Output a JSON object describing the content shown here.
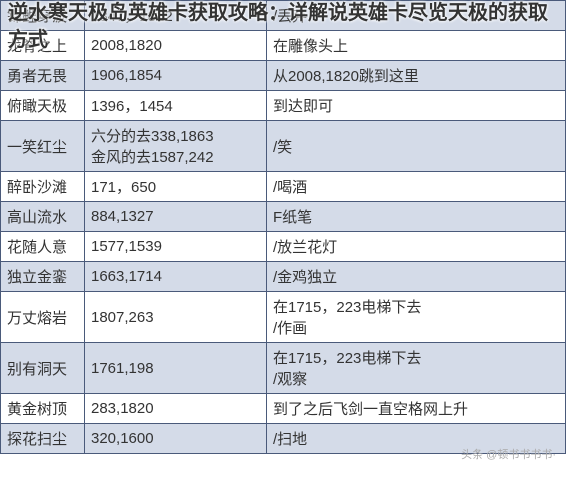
{
  "title": "逆水寒天极岛英雄卡获取攻略：详解说英雄卡尽览天极的获取方式",
  "watermark": "头条 @顿书书书书·",
  "colors": {
    "stripe": "#d4dbe8",
    "border": "#4a5a7a",
    "text": "#333333",
    "fadedText": "#999999",
    "bg": "#ffffff"
  },
  "rows": [
    {
      "name": "锦鲤穿波",
      "coord": "1347，1812",
      "method": "/丢弃",
      "stripe": true,
      "faded": true
    },
    {
      "name": "龙脊之上",
      "coord": "2008,1820",
      "method": "在雕像头上",
      "stripe": false,
      "faded": true
    },
    {
      "name": "勇者无畏",
      "coord": "1906,1854",
      "method": "从2008,1820跳到这里",
      "stripe": true,
      "faded": false
    },
    {
      "name": "俯瞰天极",
      "coord": "1396，1454",
      "method": "到达即可",
      "stripe": false,
      "faded": false
    },
    {
      "name": "一笑红尘",
      "coord": "六分的去338,1863\n金风的去1587,242",
      "method": "/笑",
      "stripe": true,
      "faded": false
    },
    {
      "name": "醉卧沙滩",
      "coord": "171，650",
      "method": "/喝酒",
      "stripe": false,
      "faded": false
    },
    {
      "name": "高山流水",
      "coord": "884,1327",
      "method": "F纸笔",
      "stripe": true,
      "faded": false
    },
    {
      "name": "花随人意",
      "coord": "1577,1539",
      "method": "/放兰花灯",
      "stripe": false,
      "faded": false
    },
    {
      "name": "独立金銮",
      "coord": "1663,1714",
      "method": "/金鸡独立",
      "stripe": true,
      "faded": false
    },
    {
      "name": "万丈熔岩",
      "coord": "1807,263",
      "method": "在1715，223电梯下去\n/作画",
      "stripe": false,
      "faded": false
    },
    {
      "name": "别有洞天",
      "coord": "1761,198",
      "method": "在1715，223电梯下去\n/观察",
      "stripe": true,
      "faded": false
    },
    {
      "name": "黄金树顶",
      "coord": "283,1820",
      "method": "到了之后飞剑一直空格网上升",
      "stripe": false,
      "faded": false
    },
    {
      "name": "探花扫尘",
      "coord": "320,1600",
      "method": "/扫地",
      "stripe": true,
      "faded": false
    }
  ]
}
